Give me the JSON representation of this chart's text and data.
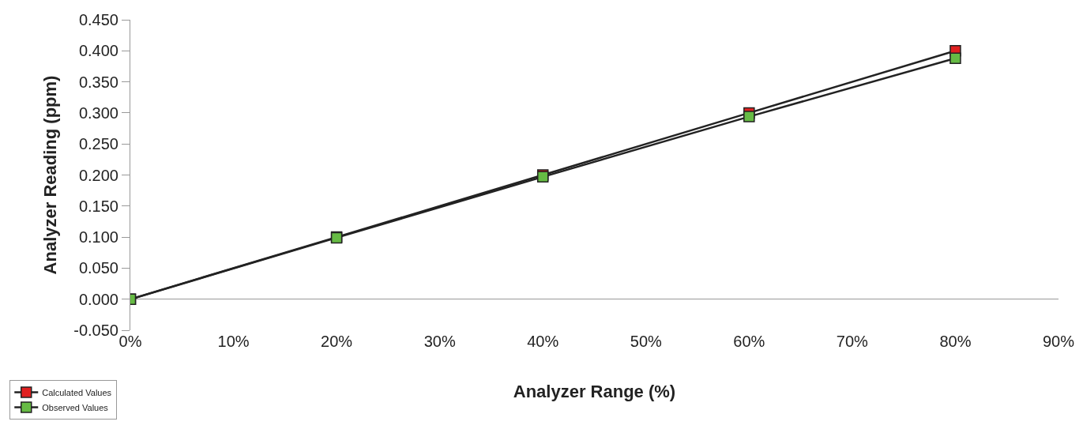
{
  "chart_data": {
    "type": "line",
    "xlabel": "Analyzer Range (%)",
    "ylabel": "Analyzer Reading (ppm)",
    "x": [
      0,
      20,
      40,
      60,
      80
    ],
    "series": [
      {
        "name": "Calculated Values",
        "color": "#e02020",
        "values": [
          0,
          0.1,
          0.2,
          0.3,
          0.4
        ]
      },
      {
        "name": "Observed Values",
        "color": "#66bb44",
        "values": [
          0,
          0.099,
          0.197,
          0.294,
          0.388
        ]
      }
    ],
    "xlim": [
      0,
      90
    ],
    "xticks": [
      {
        "value": 0,
        "label": "0%"
      },
      {
        "value": 10,
        "label": "10%"
      },
      {
        "value": 20,
        "label": "20%"
      },
      {
        "value": 30,
        "label": "30%"
      },
      {
        "value": 40,
        "label": "40%"
      },
      {
        "value": 50,
        "label": "50%"
      },
      {
        "value": 60,
        "label": "60%"
      },
      {
        "value": 70,
        "label": "70%"
      },
      {
        "value": 80,
        "label": "80%"
      },
      {
        "value": 90,
        "label": "90%"
      }
    ],
    "ylim": [
      -0.05,
      0.45
    ],
    "yticks": [
      {
        "value": -0.05,
        "label": "-0.050"
      },
      {
        "value": 0,
        "label": "0.000"
      },
      {
        "value": 0.05,
        "label": "0.050"
      },
      {
        "value": 0.1,
        "label": "0.100"
      },
      {
        "value": 0.15,
        "label": "0.150"
      },
      {
        "value": 0.2,
        "label": "0.200"
      },
      {
        "value": 0.25,
        "label": "0.250"
      },
      {
        "value": 0.3,
        "label": "0.300"
      },
      {
        "value": 0.35,
        "label": "0.350"
      },
      {
        "value": 0.4,
        "label": "0.400"
      },
      {
        "value": 0.45,
        "label": "0.450"
      }
    ],
    "marker": "square",
    "line_style": "solid",
    "legend": "bottom left"
  }
}
